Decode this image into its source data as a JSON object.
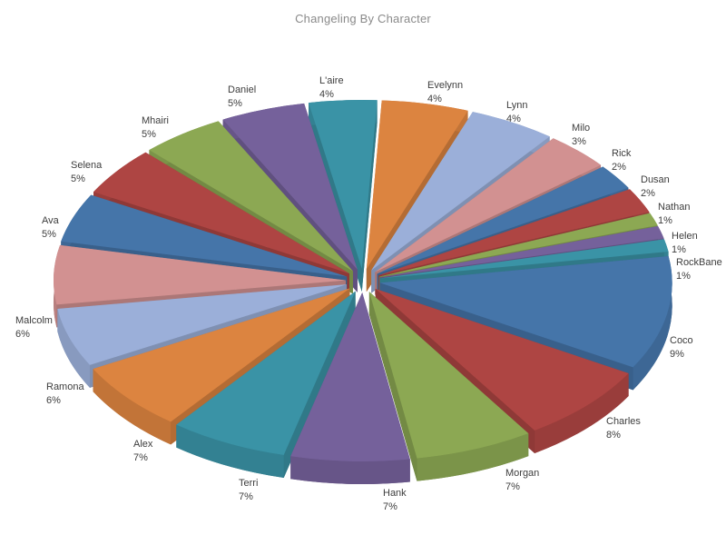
{
  "title": "Changeling By Character",
  "chart_data": {
    "type": "pie",
    "style": "3d-exploded",
    "title": "Changeling By Character",
    "unit": "%",
    "direction": "clockwise",
    "legend": "none",
    "labels_position": "outside",
    "palette": [
      "#4575A9",
      "#AE4543",
      "#8CA853",
      "#75619B",
      "#3A93A6",
      "#DC8440",
      "#9BAFD9",
      "#D29191"
    ],
    "categories": [
      "Coco",
      "Charles",
      "Morgan",
      "Hank",
      "Terri",
      "Alex",
      "Ramona",
      "Malcolm",
      "Ava",
      "Selena",
      "Mhairi",
      "Daniel",
      "L'aire",
      "Evelynn",
      "Lynn",
      "Milo",
      "Rick",
      "Dusan",
      "Nathan",
      "Helen",
      "RockBane"
    ],
    "values": [
      9,
      8,
      7,
      7,
      7,
      7,
      6,
      6,
      5,
      5,
      5,
      5,
      4,
      4,
      4,
      3,
      2,
      2,
      1,
      1,
      1
    ],
    "slices": [
      {
        "name": "Coco",
        "value": 9,
        "pct_label": "9%",
        "color": "#4575A9"
      },
      {
        "name": "Charles",
        "value": 8,
        "pct_label": "8%",
        "color": "#AE4543"
      },
      {
        "name": "Morgan",
        "value": 7,
        "pct_label": "7%",
        "color": "#8CA853"
      },
      {
        "name": "Hank",
        "value": 7,
        "pct_label": "7%",
        "color": "#75619B"
      },
      {
        "name": "Terri",
        "value": 7,
        "pct_label": "7%",
        "color": "#3A93A6"
      },
      {
        "name": "Alex",
        "value": 7,
        "pct_label": "7%",
        "color": "#DC8440"
      },
      {
        "name": "Ramona",
        "value": 6,
        "pct_label": "6%",
        "color": "#9BAFD9"
      },
      {
        "name": "Malcolm",
        "value": 6,
        "pct_label": "6%",
        "color": "#D29191"
      },
      {
        "name": "Ava",
        "value": 5,
        "pct_label": "5%",
        "color": "#4575A9"
      },
      {
        "name": "Selena",
        "value": 5,
        "pct_label": "5%",
        "color": "#AE4543"
      },
      {
        "name": "Mhairi",
        "value": 5,
        "pct_label": "5%",
        "color": "#8CA853"
      },
      {
        "name": "Daniel",
        "value": 5,
        "pct_label": "5%",
        "color": "#75619B"
      },
      {
        "name": "L'aire",
        "value": 4,
        "pct_label": "4%",
        "color": "#3A93A6"
      },
      {
        "name": "Evelynn",
        "value": 4,
        "pct_label": "4%",
        "color": "#DC8440"
      },
      {
        "name": "Lynn",
        "value": 4,
        "pct_label": "4%",
        "color": "#9BAFD9"
      },
      {
        "name": "Milo",
        "value": 3,
        "pct_label": "3%",
        "color": "#D29191"
      },
      {
        "name": "Rick",
        "value": 2,
        "pct_label": "2%",
        "color": "#4575A9"
      },
      {
        "name": "Dusan",
        "value": 2,
        "pct_label": "2%",
        "color": "#AE4543"
      },
      {
        "name": "Nathan",
        "value": 1,
        "pct_label": "1%",
        "color": "#8CA853"
      },
      {
        "name": "Helen",
        "value": 1,
        "pct_label": "1%",
        "color": "#75619B"
      },
      {
        "name": "RockBane",
        "value": 1,
        "pct_label": "1%",
        "color": "#3A93A6"
      }
    ]
  }
}
